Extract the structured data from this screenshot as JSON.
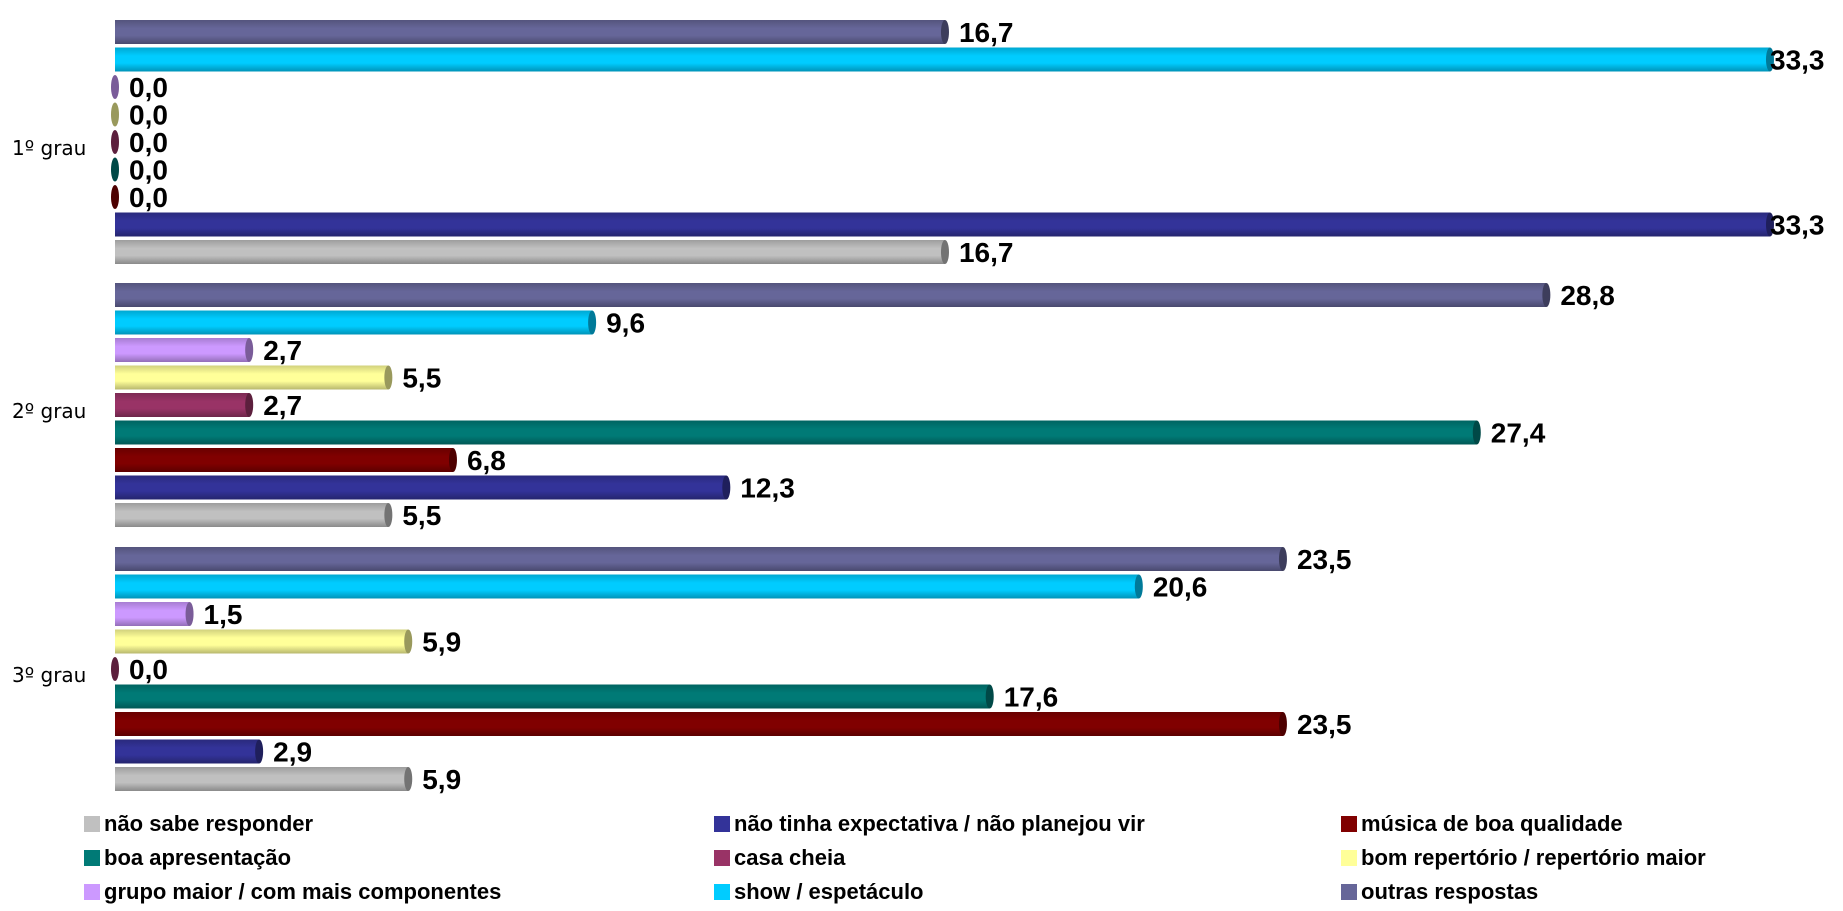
{
  "chart_data": {
    "type": "bar",
    "orientation": "horizontal",
    "categories": [
      "1º grau",
      "2º grau",
      "3º grau"
    ],
    "xlim": [
      0,
      33.3
    ],
    "grid": false,
    "legend_position": "bottom",
    "series": [
      {
        "name": "não sabe responder",
        "color": "#C0C0C0",
        "values": [
          16.7,
          5.5,
          5.9
        ],
        "labels": [
          "16,7",
          "5,5",
          "5,9"
        ]
      },
      {
        "name": "não tinha expectativa / não planejou vir",
        "color": "#333399",
        "values": [
          33.3,
          12.3,
          2.9
        ],
        "labels": [
          "33,3",
          "12,3",
          "2,9"
        ]
      },
      {
        "name": "música de boa qualidade",
        "color": "#800000",
        "values": [
          0.0,
          6.8,
          23.5
        ],
        "labels": [
          "0,0",
          "6,8",
          "23,5"
        ]
      },
      {
        "name": "boa apresentação",
        "color": "#007A76",
        "values": [
          0.0,
          27.4,
          17.6
        ],
        "labels": [
          "0,0",
          "27,4",
          "17,6"
        ]
      },
      {
        "name": "casa cheia",
        "color": "#993366",
        "values": [
          0.0,
          2.7,
          0.0
        ],
        "labels": [
          "0,0",
          "2,7",
          "0,0"
        ]
      },
      {
        "name": "bom repertório / repertório maior",
        "color": "#FFFF99",
        "values": [
          0.0,
          5.5,
          5.9
        ],
        "labels": [
          "0,0",
          "5,5",
          "5,9"
        ]
      },
      {
        "name": "grupo maior / com mais componentes",
        "color": "#CC99FF",
        "values": [
          0.0,
          2.7,
          1.5
        ],
        "labels": [
          "0,0",
          "2,7",
          "1,5"
        ]
      },
      {
        "name": "show / espetáculo",
        "color": "#00CCFF",
        "values": [
          33.3,
          9.6,
          20.6
        ],
        "labels": [
          "33,3",
          "9,6",
          "20,6"
        ]
      },
      {
        "name": "outras respostas",
        "color": "#666699",
        "values": [
          16.7,
          28.8,
          23.5
        ],
        "labels": [
          "16,7",
          "28,8",
          "23,5"
        ]
      }
    ]
  }
}
